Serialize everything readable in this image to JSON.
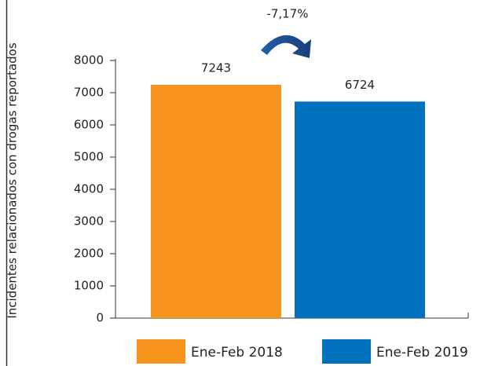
{
  "chart_data": {
    "type": "bar",
    "ylabel": "Incidentes relacionados con drogas reportados",
    "annotation": "-7,17%",
    "categories": [
      null
    ],
    "series": [
      {
        "name": "Ene-Feb 2018",
        "color": "#f7941d",
        "values": [
          7243
        ]
      },
      {
        "name": "Ene-Feb 2019",
        "color": "#0071bc",
        "values": [
          6724
        ]
      }
    ],
    "ylim": [
      0,
      8000
    ],
    "yticks": [
      0,
      1000,
      2000,
      3000,
      4000,
      5000,
      6000,
      7000,
      8000
    ],
    "legend": "bottom"
  }
}
